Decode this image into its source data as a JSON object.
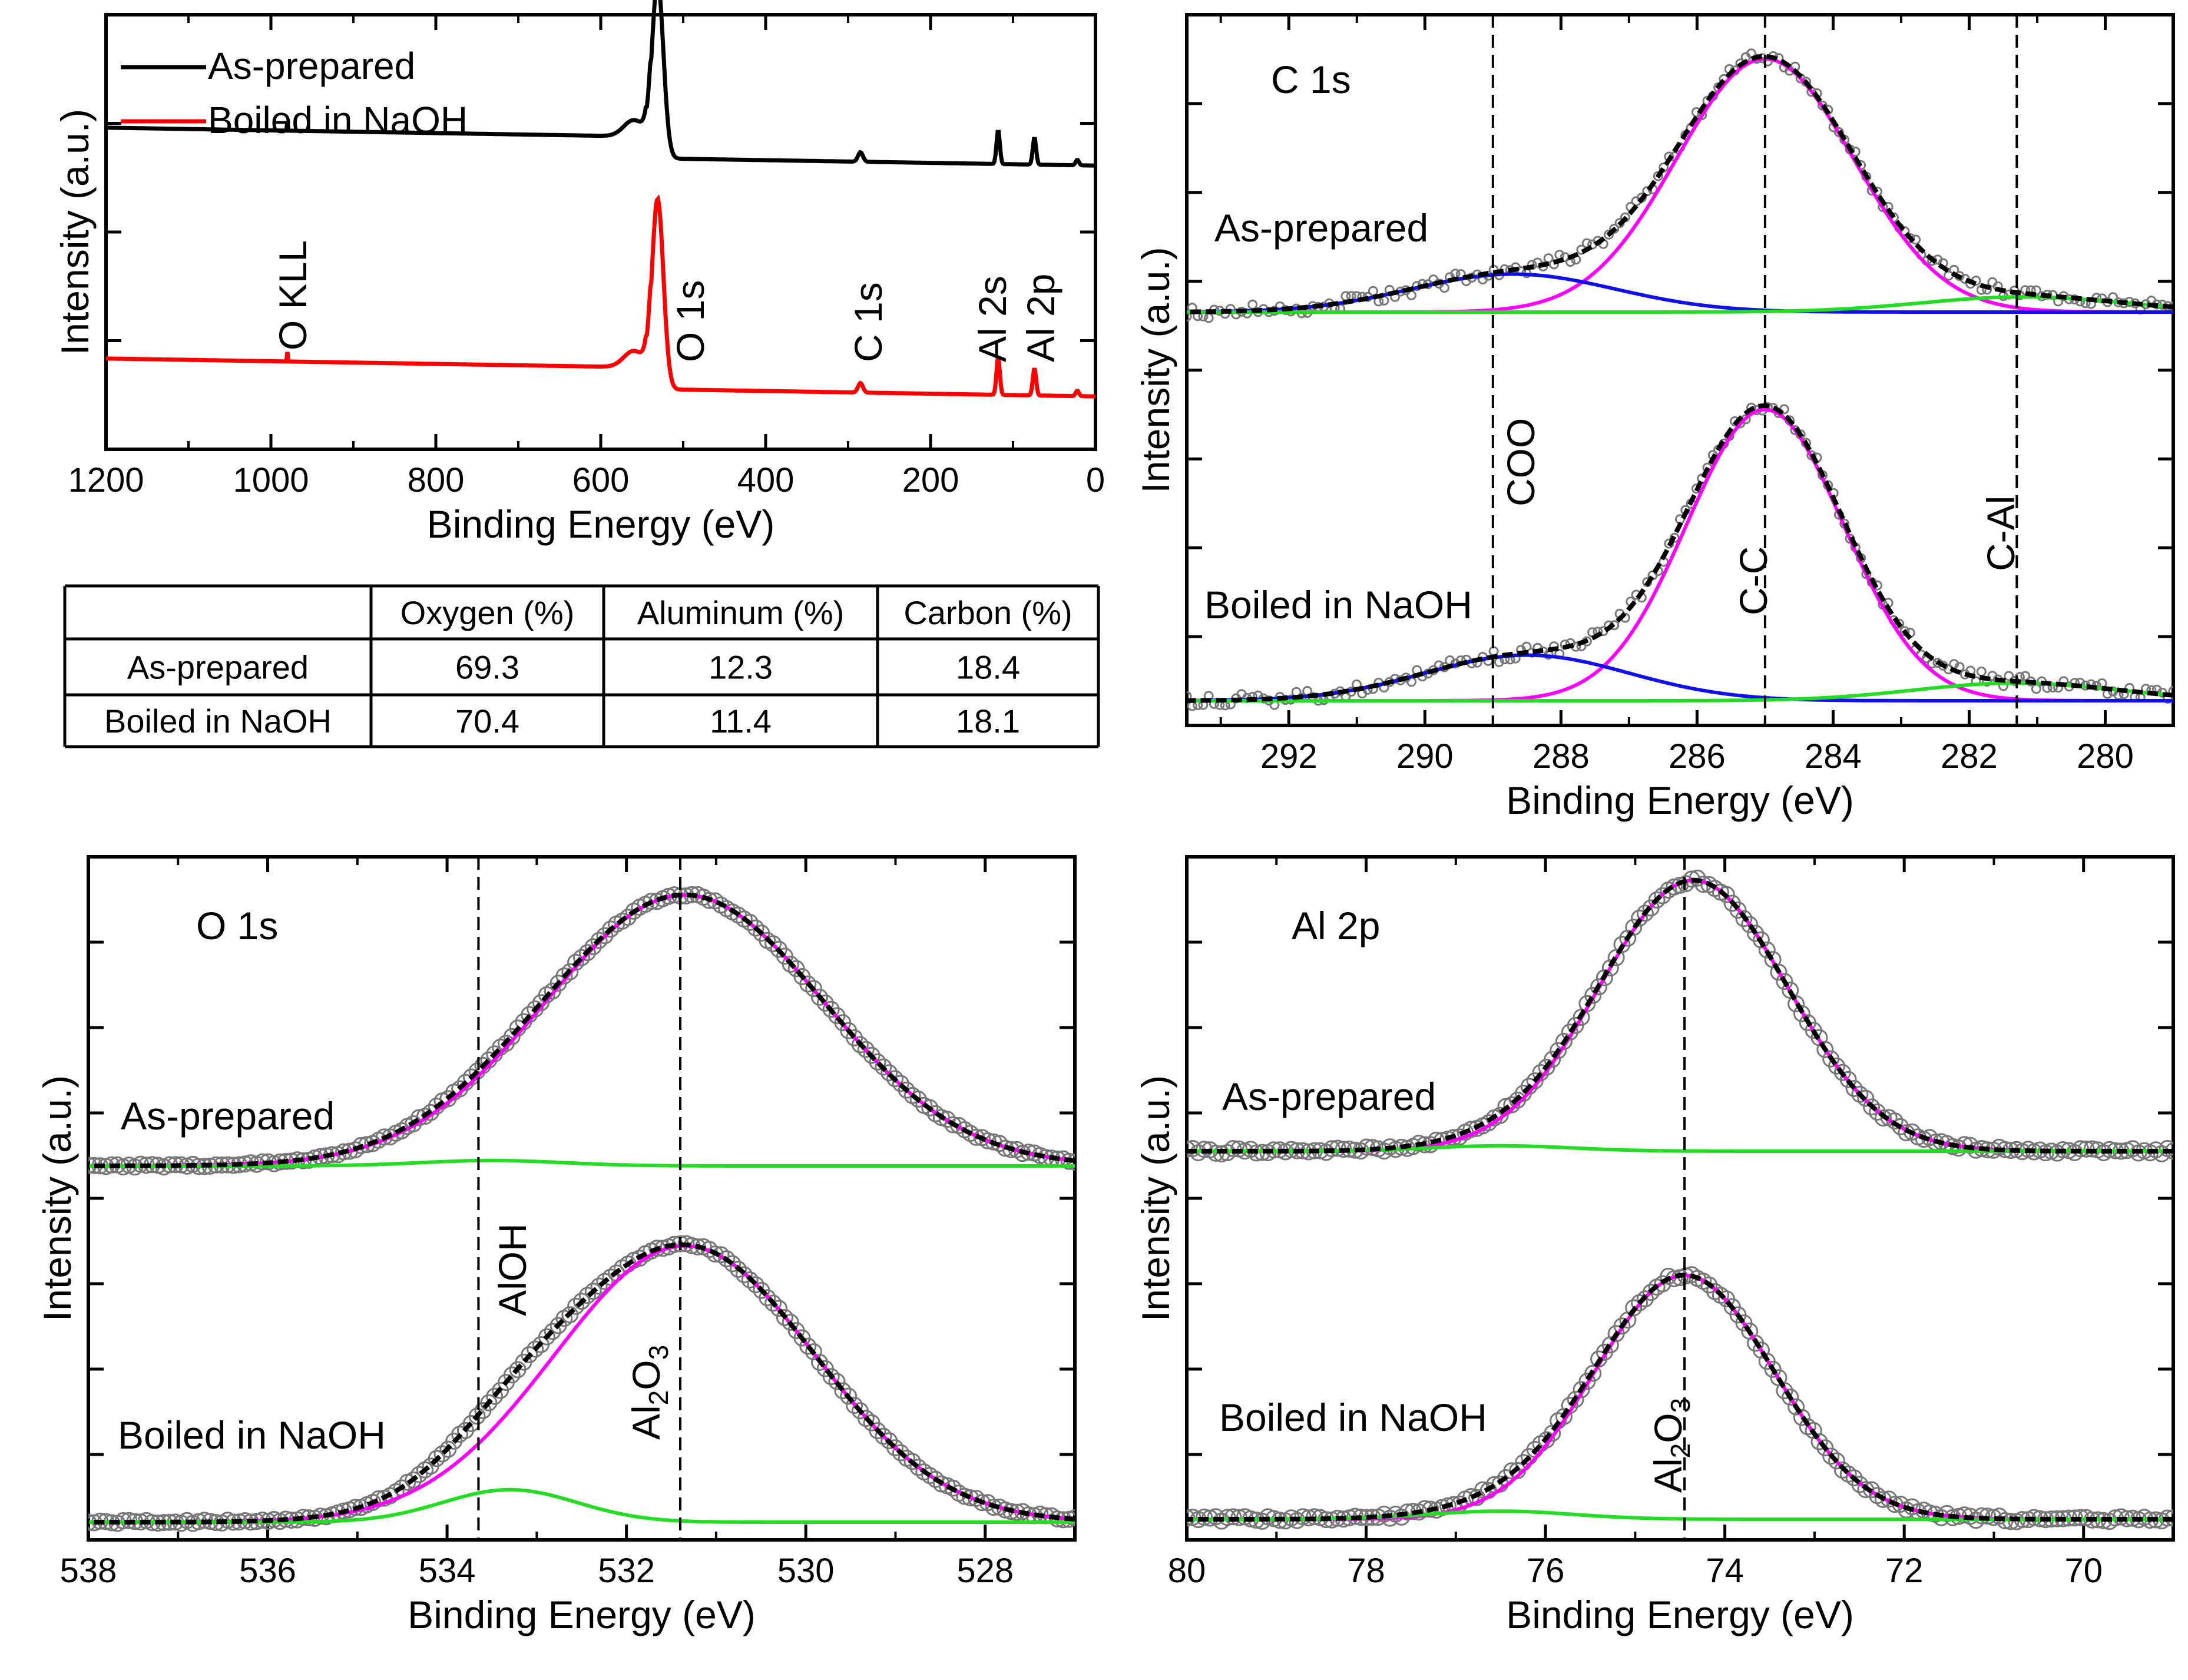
{
  "colors": {
    "black": "#000000",
    "red": "#ff0000",
    "magenta": "#ff00ff",
    "blue": "#1010ee",
    "green": "#22dd22",
    "marker": "#777777"
  },
  "chart_data": [
    {
      "id": "survey",
      "type": "line",
      "title": "",
      "xlabel": "Binding Energy (eV)",
      "ylabel": "Intensity (a.u.)",
      "xlim": [
        1200,
        0
      ],
      "xticks": [
        1200,
        1000,
        800,
        600,
        400,
        200,
        0
      ],
      "legend": {
        "position": "top-left",
        "entries": [
          {
            "label": "As-prepared",
            "color": "#000000"
          },
          {
            "label": "Boiled in NaOH",
            "color": "#ff0000"
          }
        ]
      },
      "series": [
        {
          "name": "As-prepared",
          "color": "#000000",
          "baseline": 0.62,
          "peaks": [
            [
              980,
              0.05,
              0.07
            ],
            [
              531,
              7,
              1.3
            ],
            [
              560,
              12,
              0.12
            ],
            [
              285,
              3,
              0.07
            ],
            [
              118,
              2,
              0.25
            ],
            [
              74,
              2,
              0.2
            ],
            [
              22,
              2,
              0.04
            ]
          ]
        },
        {
          "name": "Boiled in NaOH",
          "color": "#ff0000",
          "baseline": 0.0,
          "peaks": [
            [
              980,
              0.05,
              0.07
            ],
            [
              531,
              7,
              1.4
            ],
            [
              560,
              12,
              0.12
            ],
            [
              285,
              3,
              0.07
            ],
            [
              118,
              2,
              0.28
            ],
            [
              74,
              2,
              0.2
            ],
            [
              22,
              2,
              0.04
            ]
          ]
        }
      ],
      "annotations": [
        "O KLL",
        "O 1s",
        "C 1s",
        "Al 2s",
        "Al 2p"
      ]
    },
    {
      "id": "c1s",
      "type": "line",
      "title": "C 1s",
      "xlabel": "Binding Energy (eV)",
      "ylabel": "Intensity (a.u.)",
      "xlim": [
        293.5,
        279
      ],
      "xticks": [
        292,
        290,
        288,
        286,
        284,
        282,
        280
      ],
      "reference_lines": [
        {
          "x": 289.0,
          "label": "COO"
        },
        {
          "x": 285.0,
          "label": "C-C"
        },
        {
          "x": 281.3,
          "label": "C-Al"
        }
      ],
      "spectra": [
        {
          "label": "As-prepared",
          "offset": 1.3,
          "components": [
            {
              "name": "C-C",
              "center": 285.0,
              "height": 1.0,
              "width": 1.3,
              "color": "#ff00ff"
            },
            {
              "name": "COO",
              "center": 288.7,
              "height": 0.15,
              "width": 1.5,
              "color": "#1010ee"
            },
            {
              "name": "C-Al",
              "center": 281.2,
              "height": 0.06,
              "width": 1.5,
              "color": "#22dd22"
            }
          ]
        },
        {
          "label": "Boiled in NaOH",
          "offset": 0.0,
          "components": [
            {
              "name": "C-C",
              "center": 285.0,
              "height": 1.15,
              "width": 1.15,
              "color": "#ff00ff"
            },
            {
              "name": "COO",
              "center": 288.5,
              "height": 0.18,
              "width": 1.5,
              "color": "#1010ee"
            },
            {
              "name": "C-Al",
              "center": 281.3,
              "height": 0.07,
              "width": 1.5,
              "color": "#22dd22"
            }
          ]
        }
      ]
    },
    {
      "id": "o1s",
      "type": "line",
      "title": "O 1s",
      "xlabel": "Binding Energy (eV)",
      "ylabel": "Intensity (a.u.)",
      "xlim": [
        538,
        527
      ],
      "xticks": [
        538,
        536,
        534,
        532,
        530,
        528
      ],
      "reference_lines": [
        {
          "x": 533.65,
          "label": "AlOH"
        },
        {
          "x": 531.4,
          "label": "Al2O3"
        }
      ],
      "spectra": [
        {
          "label": "As-prepared",
          "offset": 1.45,
          "components": [
            {
              "name": "Al2O3",
              "center": 531.35,
              "height": 1.0,
              "width": 1.55,
              "color": "#ff00ff"
            },
            {
              "name": "AlOH",
              "center": 533.5,
              "height": 0.02,
              "width": 0.8,
              "color": "#22dd22"
            }
          ]
        },
        {
          "label": "Boiled in NaOH",
          "offset": 0.0,
          "components": [
            {
              "name": "Al2O3",
              "center": 531.35,
              "height": 1.02,
              "width": 1.45,
              "color": "#ff00ff"
            },
            {
              "name": "AlOH",
              "center": 533.3,
              "height": 0.12,
              "width": 0.75,
              "color": "#22dd22"
            }
          ]
        }
      ]
    },
    {
      "id": "al2p",
      "type": "line",
      "title": "Al 2p",
      "xlabel": "Binding Energy (eV)",
      "ylabel": "Intensity (a.u.)",
      "xlim": [
        80,
        69
      ],
      "xticks": [
        80,
        78,
        76,
        74,
        72,
        70
      ],
      "reference_lines": [
        {
          "x": 74.45,
          "label": "Al2O3"
        }
      ],
      "spectra": [
        {
          "label": "As-prepared",
          "offset": 1.38,
          "components": [
            {
              "name": "Al2O3",
              "center": 74.35,
              "height": 1.0,
              "width": 1.05,
              "color": "#ff00ff"
            },
            {
              "name": "AlOH",
              "center": 76.5,
              "height": 0.02,
              "width": 0.8,
              "color": "#22dd22"
            }
          ]
        },
        {
          "label": "Boiled in NaOH",
          "offset": 0.0,
          "components": [
            {
              "name": "Al2O3",
              "center": 74.45,
              "height": 0.9,
              "width": 1.0,
              "color": "#ff00ff"
            },
            {
              "name": "AlOH",
              "center": 76.5,
              "height": 0.03,
              "width": 0.8,
              "color": "#22dd22"
            }
          ]
        }
      ]
    },
    {
      "id": "composition",
      "type": "table",
      "columns": [
        "",
        "Oxygen (%)",
        "Aluminum  (%)",
        "Carbon (%)"
      ],
      "rows": [
        [
          "As-prepared",
          "69.3",
          "12.3",
          "18.4"
        ],
        [
          "Boiled in NaOH",
          "70.4",
          "11.4",
          "18.1"
        ]
      ]
    }
  ]
}
